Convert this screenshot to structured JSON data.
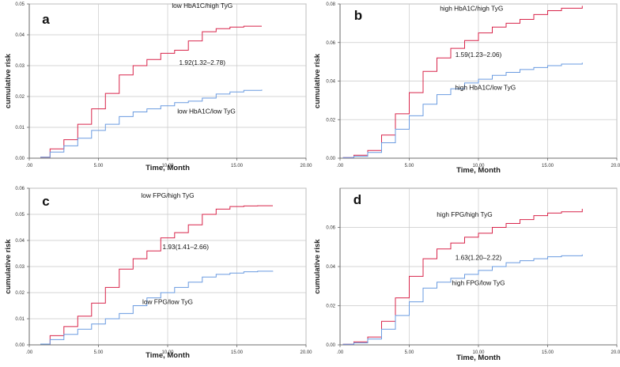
{
  "chart_data": [
    {
      "type": "line",
      "panel": "a",
      "xlabel": "Time, Month",
      "ylabel": "cumulative risk",
      "xlim": [
        0,
        20
      ],
      "ylim": [
        0,
        0.05
      ],
      "x_ticks": [
        0,
        5,
        10,
        15,
        20
      ],
      "x_tick_labels": [
        ".00",
        "5.00",
        "10.00",
        "15.00",
        "20.00"
      ],
      "y_ticks": [
        0,
        0.01,
        0.02,
        0.03,
        0.04,
        0.05
      ],
      "y_tick_labels": [
        "0.00",
        "0.01",
        "0.02",
        "0.03",
        "0.04",
        "0.05"
      ],
      "grid": true,
      "series": [
        {
          "name": "low HbA1C/high TyG",
          "color": "#d8244a",
          "x": [
            0.8,
            1.5,
            2.5,
            3.5,
            4.5,
            5.5,
            6.5,
            7.5,
            8.5,
            9.5,
            10.5,
            11.5,
            12.5,
            13.5,
            14.5,
            15.5,
            16.8
          ],
          "y": [
            0.0003,
            0.003,
            0.006,
            0.011,
            0.016,
            0.021,
            0.027,
            0.03,
            0.032,
            0.034,
            0.035,
            0.038,
            0.041,
            0.042,
            0.0425,
            0.0428,
            0.0428
          ]
        },
        {
          "name": "low HbA1C/low TyG",
          "color": "#6a9be0",
          "x": [
            0.8,
            1.5,
            2.5,
            3.5,
            4.5,
            5.5,
            6.5,
            7.5,
            8.5,
            9.5,
            10.5,
            11.5,
            12.5,
            13.5,
            14.5,
            15.5,
            16.8
          ],
          "y": [
            0.0003,
            0.002,
            0.004,
            0.0065,
            0.009,
            0.011,
            0.0135,
            0.015,
            0.016,
            0.017,
            0.018,
            0.0185,
            0.0195,
            0.0208,
            0.0215,
            0.022,
            0.0222
          ]
        }
      ],
      "annotations": [
        {
          "text": "low HbA1C/high TyG",
          "at": [
            12.5,
            0.0487
          ]
        },
        {
          "text": "1.92(1.32–2.78)",
          "at": [
            12.5,
            0.0303
          ]
        },
        {
          "text": "low HbA1C/low TyG",
          "at": [
            12.8,
            0.0145
          ]
        }
      ]
    },
    {
      "type": "line",
      "panel": "b",
      "xlabel": "Time, Month",
      "ylabel": "cumulative risk",
      "xlim": [
        0,
        20
      ],
      "ylim": [
        0,
        0.08
      ],
      "x_ticks": [
        0,
        5,
        10,
        15,
        20
      ],
      "x_tick_labels": [
        ".00",
        "5.00",
        "10.00",
        "15.00",
        "20.00"
      ],
      "y_ticks": [
        0,
        0.02,
        0.04,
        0.06,
        0.08
      ],
      "y_tick_labels": [
        "0.00",
        "0.02",
        "0.04",
        "0.06",
        "0.08"
      ],
      "grid": true,
      "series": [
        {
          "name": "high HbA1C/high TyG",
          "color": "#d8244a",
          "x": [
            0.2,
            1,
            2,
            3,
            4,
            5,
            6,
            7,
            8,
            9,
            10,
            11,
            12,
            13,
            14,
            15,
            16,
            17.5
          ],
          "y": [
            0.0003,
            0.0015,
            0.004,
            0.012,
            0.023,
            0.034,
            0.045,
            0.052,
            0.057,
            0.061,
            0.065,
            0.068,
            0.07,
            0.072,
            0.0745,
            0.0765,
            0.0778,
            0.079
          ]
        },
        {
          "name": "high HbA1C/low TyG",
          "color": "#6a9be0",
          "x": [
            0.2,
            1,
            2,
            3,
            4,
            5,
            6,
            7,
            8,
            9,
            10,
            11,
            12,
            13,
            14,
            15,
            16,
            17.5
          ],
          "y": [
            0.0003,
            0.001,
            0.003,
            0.008,
            0.015,
            0.022,
            0.028,
            0.033,
            0.036,
            0.039,
            0.041,
            0.043,
            0.0445,
            0.046,
            0.047,
            0.048,
            0.0488,
            0.0495
          ]
        }
      ],
      "annotations": [
        {
          "text": "high HbA1C/high TyG",
          "at": [
            9.5,
            0.0765
          ]
        },
        {
          "text": "1.59(1.23–2.06)",
          "at": [
            10,
            0.0525
          ]
        },
        {
          "text": "high HbA1C/low TyG",
          "at": [
            10.5,
            0.0355
          ]
        }
      ]
    },
    {
      "type": "line",
      "panel": "c",
      "xlabel": "Time, Month",
      "ylabel": "cumulative risk",
      "xlim": [
        0,
        20
      ],
      "ylim": [
        0,
        0.06
      ],
      "x_ticks": [
        0,
        5,
        10,
        15,
        20
      ],
      "x_tick_labels": [
        ".00",
        "5.00",
        "10.00",
        "15.00",
        "20.00"
      ],
      "y_ticks": [
        0,
        0.01,
        0.02,
        0.03,
        0.04,
        0.05,
        0.06
      ],
      "y_tick_labels": [
        "0.00",
        "0.01",
        "0.02",
        "0.03",
        "0.04",
        "0.05",
        "0.06"
      ],
      "grid": true,
      "series": [
        {
          "name": "low FPG/high TyG",
          "color": "#d8244a",
          "x": [
            0.8,
            1.5,
            2.5,
            3.5,
            4.5,
            5.5,
            6.5,
            7.5,
            8.5,
            9.5,
            10.5,
            11.5,
            12.5,
            13.5,
            14.5,
            15.5,
            16.5,
            17.6
          ],
          "y": [
            0.0003,
            0.0035,
            0.007,
            0.011,
            0.016,
            0.022,
            0.029,
            0.033,
            0.036,
            0.041,
            0.043,
            0.046,
            0.05,
            0.052,
            0.053,
            0.0532,
            0.0533,
            0.0533
          ]
        },
        {
          "name": "low FPG/low TyG",
          "color": "#6a9be0",
          "x": [
            0.8,
            1.5,
            2.5,
            3.5,
            4.5,
            5.5,
            6.5,
            7.5,
            8.5,
            9.5,
            10.5,
            11.5,
            12.5,
            13.5,
            14.5,
            15.5,
            16.5,
            17.6
          ],
          "y": [
            0.0003,
            0.002,
            0.004,
            0.006,
            0.008,
            0.01,
            0.012,
            0.015,
            0.018,
            0.02,
            0.022,
            0.024,
            0.026,
            0.027,
            0.0275,
            0.028,
            0.0282,
            0.0283
          ]
        }
      ],
      "annotations": [
        {
          "text": "low FPG/high TyG",
          "at": [
            10,
            0.0563
          ]
        },
        {
          "text": "1.93(1.41–2.66)",
          "at": [
            11.3,
            0.0367
          ]
        },
        {
          "text": "low FPG/low TyG",
          "at": [
            10,
            0.0156
          ]
        }
      ]
    },
    {
      "type": "line",
      "panel": "d",
      "xlabel": "Time, Month",
      "ylabel": "cumulative risk",
      "xlim": [
        0,
        20
      ],
      "ylim": [
        0,
        0.08
      ],
      "x_ticks": [
        0,
        5,
        10,
        15,
        20
      ],
      "x_tick_labels": [
        ".00",
        "5.00",
        "10.00",
        "15.00",
        "20.00"
      ],
      "y_ticks": [
        0,
        0.02,
        0.04,
        0.06
      ],
      "y_tick_labels": [
        "0.00",
        "0.02",
        "0.04",
        "0.06"
      ],
      "grid": true,
      "series": [
        {
          "name": "high FPG/high TyG",
          "color": "#d8244a",
          "x": [
            0.2,
            1,
            2,
            3,
            4,
            5,
            6,
            7,
            8,
            9,
            10,
            11,
            12,
            13,
            14,
            15,
            16,
            17.5
          ],
          "y": [
            0.0003,
            0.0015,
            0.004,
            0.012,
            0.024,
            0.035,
            0.044,
            0.049,
            0.052,
            0.055,
            0.057,
            0.06,
            0.062,
            0.064,
            0.066,
            0.0673,
            0.068,
            0.0695
          ]
        },
        {
          "name": "high FPG/low TyG",
          "color": "#6a9be0",
          "x": [
            0.2,
            1,
            2,
            3,
            4,
            5,
            6,
            7,
            8,
            9,
            10,
            11,
            12,
            13,
            14,
            15,
            16,
            17.5
          ],
          "y": [
            0.0003,
            0.001,
            0.003,
            0.008,
            0.015,
            0.022,
            0.029,
            0.032,
            0.034,
            0.036,
            0.038,
            0.04,
            0.042,
            0.043,
            0.044,
            0.045,
            0.0455,
            0.0462
          ]
        }
      ],
      "annotations": [
        {
          "text": "high FPG/high TyG",
          "at": [
            9,
            0.0655
          ]
        },
        {
          "text": "1.63(1.20–2.22)",
          "at": [
            10,
            0.0435
          ]
        },
        {
          "text": "high FPG/low TyG",
          "at": [
            10,
            0.0305
          ]
        }
      ]
    }
  ]
}
